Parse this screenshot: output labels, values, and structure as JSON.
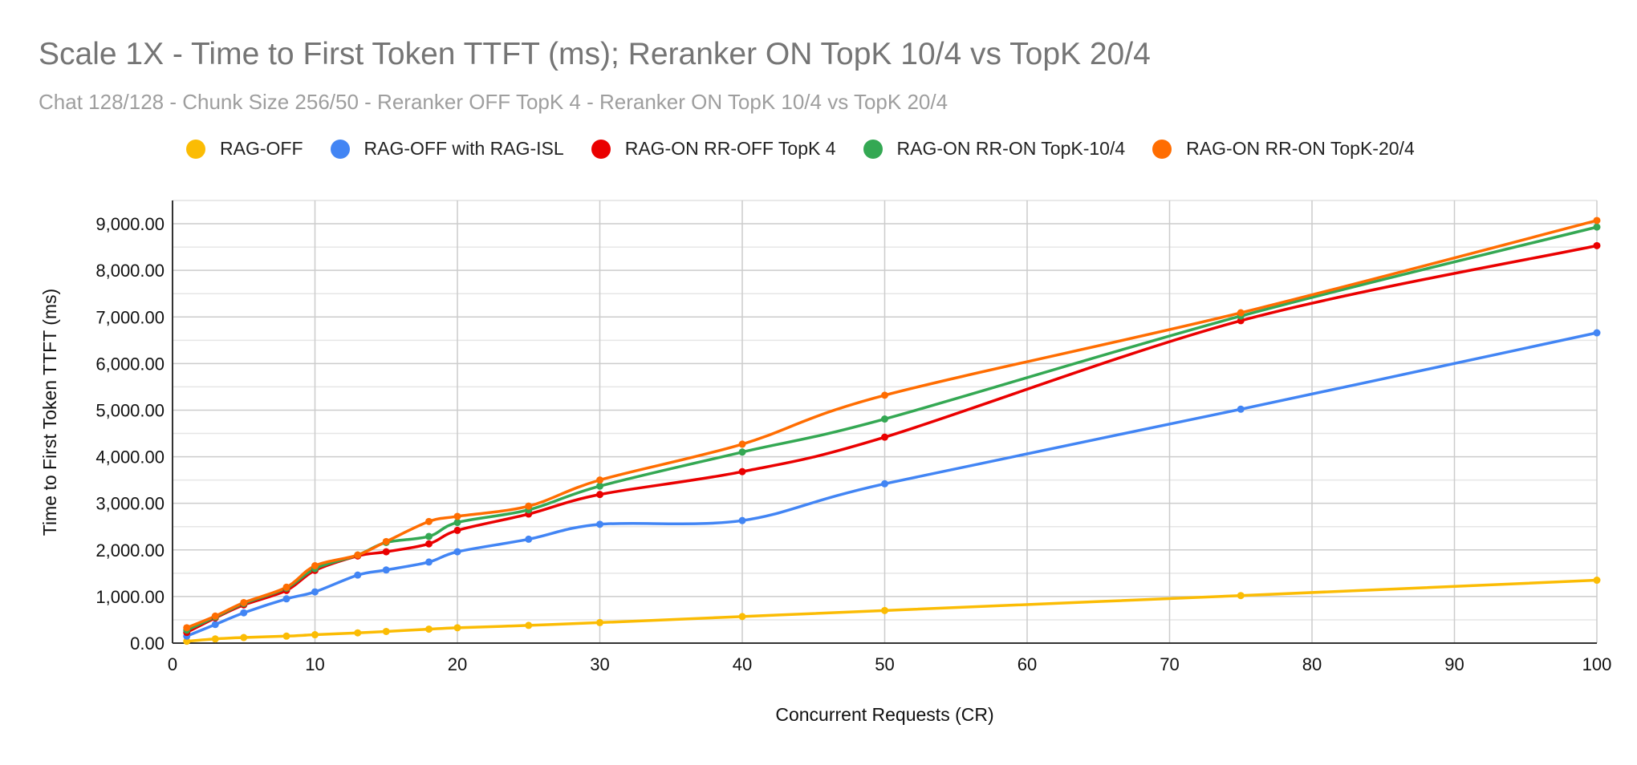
{
  "chart_data": {
    "type": "line",
    "title": "Scale 1X - Time to First Token TTFT (ms); Reranker ON TopK 10/4  vs TopK 20/4",
    "subtitle": "Chat 128/128 - Chunk Size 256/50 - Reranker OFF  TopK 4 - Reranker ON  TopK 10/4 vs TopK 20/4",
    "xlabel": "Concurrent Requests (CR)",
    "ylabel": "Time to First Token TTFT (ms)",
    "xlim": [
      0,
      100
    ],
    "ylim": [
      0,
      9500
    ],
    "x_ticks": [
      "0",
      "10",
      "20",
      "30",
      "40",
      "50",
      "60",
      "70",
      "80",
      "90",
      "100"
    ],
    "y_ticks": [
      "0.00",
      "1,000.00",
      "2,000.00",
      "3,000.00",
      "4,000.00",
      "5,000.00",
      "6,000.00",
      "7,000.00",
      "8,000.00",
      "9,000.00"
    ],
    "grid": true,
    "legend_position": "top",
    "series": [
      {
        "name": "RAG-OFF",
        "color": "#fbbc04",
        "points": [
          [
            1,
            40
          ],
          [
            3,
            90
          ],
          [
            5,
            120
          ],
          [
            8,
            150
          ],
          [
            10,
            180
          ],
          [
            13,
            220
          ],
          [
            15,
            250
          ],
          [
            18,
            300
          ],
          [
            20,
            330
          ],
          [
            25,
            380
          ],
          [
            30,
            440
          ],
          [
            40,
            570
          ],
          [
            50,
            700
          ],
          [
            75,
            1020
          ],
          [
            100,
            1350
          ]
        ]
      },
      {
        "name": "RAG-OFF with RAG-ISL",
        "color": "#4285f4",
        "points": [
          [
            1,
            150
          ],
          [
            3,
            400
          ],
          [
            5,
            650
          ],
          [
            8,
            950
          ],
          [
            10,
            1100
          ],
          [
            13,
            1460
          ],
          [
            15,
            1570
          ],
          [
            18,
            1740
          ],
          [
            20,
            1960
          ],
          [
            25,
            2230
          ],
          [
            30,
            2550
          ],
          [
            40,
            2630
          ],
          [
            50,
            3420
          ],
          [
            75,
            5020
          ],
          [
            100,
            6660
          ]
        ]
      },
      {
        "name": "RAG-ON RR-OFF TopK 4",
        "color": "#ea0000",
        "points": [
          [
            1,
            230
          ],
          [
            3,
            540
          ],
          [
            5,
            820
          ],
          [
            8,
            1130
          ],
          [
            10,
            1560
          ],
          [
            13,
            1870
          ],
          [
            15,
            1960
          ],
          [
            18,
            2130
          ],
          [
            20,
            2420
          ],
          [
            25,
            2770
          ],
          [
            30,
            3190
          ],
          [
            40,
            3680
          ],
          [
            50,
            4420
          ],
          [
            75,
            6920
          ],
          [
            100,
            8530
          ]
        ]
      },
      {
        "name": "RAG-ON RR-ON TopK-10/4",
        "color": "#34a853",
        "points": [
          [
            1,
            280
          ],
          [
            3,
            560
          ],
          [
            5,
            850
          ],
          [
            8,
            1180
          ],
          [
            10,
            1600
          ],
          [
            13,
            1890
          ],
          [
            15,
            2160
          ],
          [
            18,
            2290
          ],
          [
            20,
            2590
          ],
          [
            25,
            2860
          ],
          [
            30,
            3370
          ],
          [
            40,
            4100
          ],
          [
            50,
            4810
          ],
          [
            75,
            7020
          ],
          [
            100,
            8930
          ]
        ]
      },
      {
        "name": "RAG-ON RR-ON TopK-20/4",
        "color": "#ff6d01",
        "points": [
          [
            1,
            330
          ],
          [
            3,
            580
          ],
          [
            5,
            870
          ],
          [
            8,
            1200
          ],
          [
            10,
            1660
          ],
          [
            13,
            1890
          ],
          [
            15,
            2180
          ],
          [
            18,
            2610
          ],
          [
            20,
            2720
          ],
          [
            25,
            2940
          ],
          [
            30,
            3500
          ],
          [
            40,
            4270
          ],
          [
            50,
            5320
          ],
          [
            75,
            7090
          ],
          [
            100,
            9070
          ]
        ]
      }
    ]
  }
}
